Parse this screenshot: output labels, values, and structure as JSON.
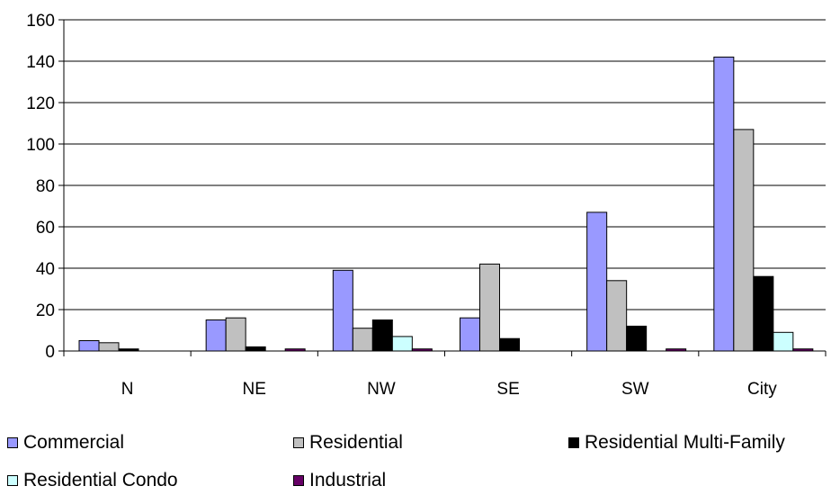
{
  "chart_data": {
    "type": "bar",
    "title": "",
    "xlabel": "",
    "ylabel": "",
    "categories": [
      "N",
      "NE",
      "NW",
      "SE",
      "SW",
      "City"
    ],
    "ylim": [
      0,
      160
    ],
    "yticks": [
      0,
      20,
      40,
      60,
      80,
      100,
      120,
      140,
      160
    ],
    "grid": true,
    "legend_position": "bottom",
    "series": [
      {
        "name": "Commercial",
        "color": "#9999ff",
        "values": [
          5,
          15,
          39,
          16,
          67,
          142
        ]
      },
      {
        "name": "Residential",
        "color": "#c0c0c0",
        "values": [
          4,
          16,
          11,
          42,
          34,
          107
        ]
      },
      {
        "name": "Residential Multi-Family",
        "color": "#000000",
        "values": [
          1,
          2,
          15,
          6,
          12,
          36
        ]
      },
      {
        "name": "Residential Condo",
        "color": "#ccffff",
        "values": [
          0,
          0,
          7,
          0,
          0,
          9
        ]
      },
      {
        "name": "Industrial",
        "color": "#660066",
        "values": [
          0,
          1,
          1,
          0,
          1,
          1
        ]
      }
    ]
  }
}
